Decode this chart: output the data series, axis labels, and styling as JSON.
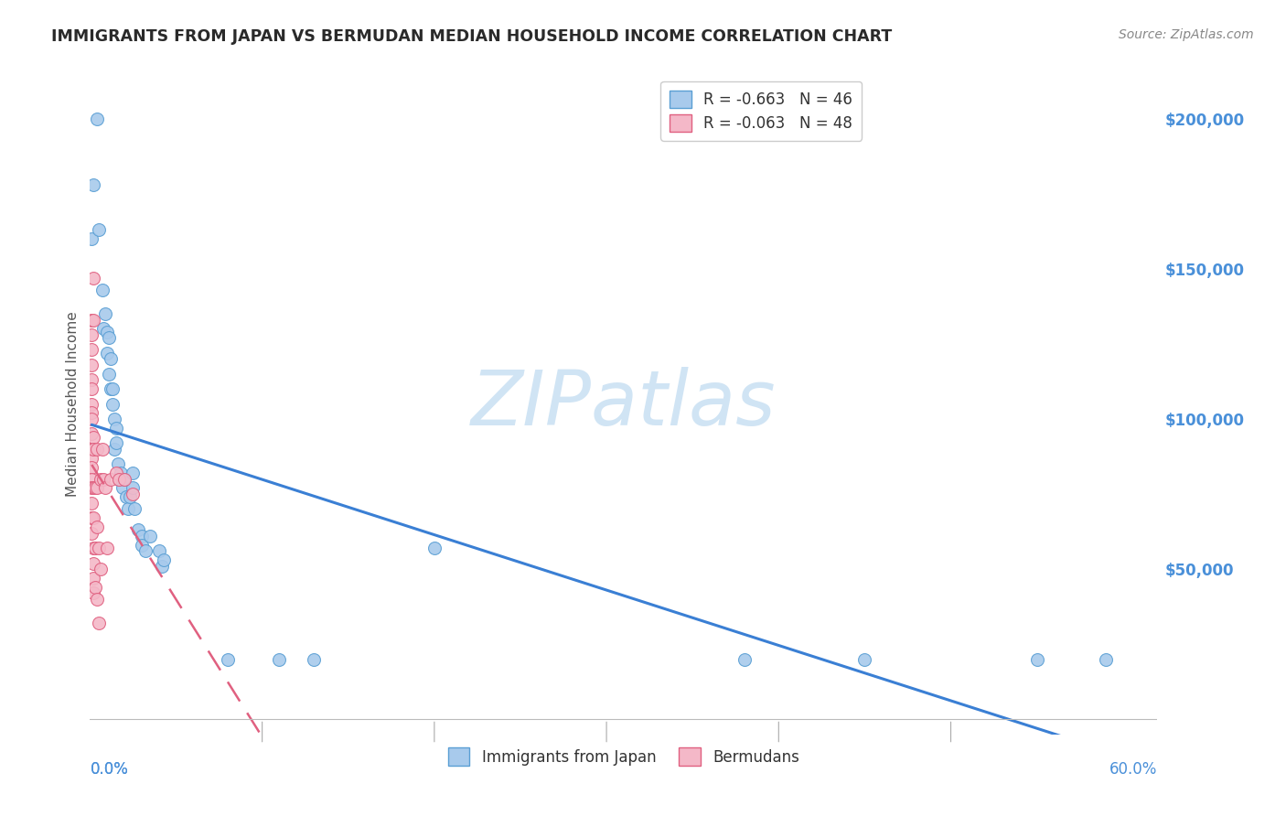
{
  "title": "IMMIGRANTS FROM JAPAN VS BERMUDAN MEDIAN HOUSEHOLD INCOME CORRELATION CHART",
  "source": "Source: ZipAtlas.com",
  "ylabel": "Median Household Income",
  "yticks": [
    0,
    50000,
    100000,
    150000,
    200000
  ],
  "ytick_labels": [
    "",
    "$50,000",
    "$100,000",
    "$150,000",
    "$200,000"
  ],
  "ylim": [
    -5000,
    215000
  ],
  "xlim": [
    0.0,
    0.62
  ],
  "xtick_positions": [
    0.0,
    0.1,
    0.2,
    0.3,
    0.4,
    0.5,
    0.6
  ],
  "legend_top": [
    {
      "label": "R = -0.663   N = 46",
      "face": "#a8caec",
      "edge": "#4a90d9"
    },
    {
      "label": "R = -0.063   N = 48",
      "face": "#f4b8c8",
      "edge": "#e87090"
    }
  ],
  "legend_bottom": [
    {
      "label": "Immigrants from Japan",
      "face": "#a8caec",
      "edge": "#4a90d9"
    },
    {
      "label": "Bermudans",
      "face": "#f4b8c8",
      "edge": "#e87090"
    }
  ],
  "japan_points": [
    [
      0.001,
      160000
    ],
    [
      0.002,
      178000
    ],
    [
      0.004,
      200000
    ],
    [
      0.005,
      163000
    ],
    [
      0.007,
      143000
    ],
    [
      0.008,
      130000
    ],
    [
      0.009,
      135000
    ],
    [
      0.01,
      129000
    ],
    [
      0.01,
      122000
    ],
    [
      0.011,
      127000
    ],
    [
      0.011,
      115000
    ],
    [
      0.012,
      110000
    ],
    [
      0.012,
      120000
    ],
    [
      0.013,
      110000
    ],
    [
      0.013,
      105000
    ],
    [
      0.014,
      100000
    ],
    [
      0.014,
      90000
    ],
    [
      0.015,
      97000
    ],
    [
      0.015,
      92000
    ],
    [
      0.016,
      85000
    ],
    [
      0.017,
      80000
    ],
    [
      0.018,
      82000
    ],
    [
      0.019,
      77000
    ],
    [
      0.02,
      80000
    ],
    [
      0.021,
      74000
    ],
    [
      0.022,
      70000
    ],
    [
      0.023,
      74000
    ],
    [
      0.025,
      82000
    ],
    [
      0.025,
      77000
    ],
    [
      0.026,
      70000
    ],
    [
      0.028,
      63000
    ],
    [
      0.03,
      61000
    ],
    [
      0.03,
      58000
    ],
    [
      0.032,
      56000
    ],
    [
      0.035,
      61000
    ],
    [
      0.04,
      56000
    ],
    [
      0.042,
      51000
    ],
    [
      0.043,
      53000
    ],
    [
      0.08,
      20000
    ],
    [
      0.11,
      20000
    ],
    [
      0.13,
      20000
    ],
    [
      0.2,
      57000
    ],
    [
      0.38,
      20000
    ],
    [
      0.45,
      20000
    ],
    [
      0.55,
      20000
    ],
    [
      0.59,
      20000
    ]
  ],
  "bermuda_points": [
    [
      0.001,
      133000
    ],
    [
      0.001,
      128000
    ],
    [
      0.001,
      123000
    ],
    [
      0.001,
      118000
    ],
    [
      0.001,
      113000
    ],
    [
      0.001,
      110000
    ],
    [
      0.001,
      105000
    ],
    [
      0.001,
      102000
    ],
    [
      0.001,
      100000
    ],
    [
      0.001,
      95000
    ],
    [
      0.001,
      90000
    ],
    [
      0.001,
      87000
    ],
    [
      0.001,
      84000
    ],
    [
      0.001,
      80000
    ],
    [
      0.001,
      77000
    ],
    [
      0.001,
      72000
    ],
    [
      0.001,
      67000
    ],
    [
      0.001,
      62000
    ],
    [
      0.002,
      133000
    ],
    [
      0.002,
      147000
    ],
    [
      0.002,
      94000
    ],
    [
      0.002,
      90000
    ],
    [
      0.002,
      77000
    ],
    [
      0.002,
      67000
    ],
    [
      0.002,
      57000
    ],
    [
      0.002,
      52000
    ],
    [
      0.002,
      47000
    ],
    [
      0.002,
      42000
    ],
    [
      0.003,
      77000
    ],
    [
      0.003,
      57000
    ],
    [
      0.003,
      44000
    ],
    [
      0.004,
      90000
    ],
    [
      0.004,
      77000
    ],
    [
      0.004,
      64000
    ],
    [
      0.004,
      40000
    ],
    [
      0.005,
      57000
    ],
    [
      0.005,
      32000
    ],
    [
      0.006,
      80000
    ],
    [
      0.006,
      50000
    ],
    [
      0.007,
      90000
    ],
    [
      0.008,
      80000
    ],
    [
      0.009,
      77000
    ],
    [
      0.01,
      57000
    ],
    [
      0.012,
      80000
    ],
    [
      0.015,
      82000
    ],
    [
      0.017,
      80000
    ],
    [
      0.02,
      80000
    ],
    [
      0.025,
      75000
    ]
  ],
  "japan_line_color": "#3a7fd4",
  "bermuda_line_color": "#e06080",
  "japan_scatter_face": "#a8caec",
  "bermuda_scatter_face": "#f4b8c8",
  "japan_scatter_edge": "#5a9fd4",
  "bermuda_scatter_edge": "#e06080",
  "watermark_color": "#d0e4f4",
  "grid_color": "#cccccc",
  "ytick_color": "#4a90d9",
  "background_color": "#ffffff"
}
